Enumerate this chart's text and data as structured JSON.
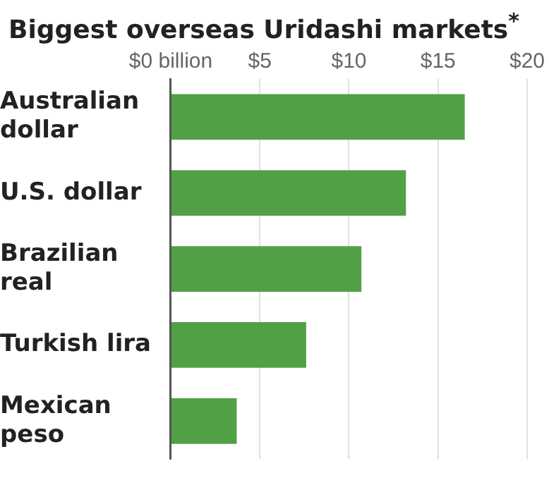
{
  "chart_data": {
    "type": "bar",
    "title": "Biggest overseas Uridashi markets$^{*}$",
    "orientation": "horizontal",
    "categories": [
      "Australian dollar",
      "U.S. dollar",
      "Brazilian real",
      "Turkish lira",
      "Mexican peso"
    ],
    "values": [
      16.5,
      13.2,
      10.7,
      7.6,
      3.7
    ],
    "color": "#51a046",
    "xlim": [
      0,
      20
    ],
    "xticks": [
      {
        "value": 0,
        "label": "$0 billion"
      },
      {
        "value": 5,
        "label": "$5"
      },
      {
        "value": 10,
        "label": "$10"
      },
      {
        "value": 15,
        "label": "$15"
      },
      {
        "value": 20,
        "label": "$20"
      }
    ],
    "grid": "x",
    "legend": false
  }
}
